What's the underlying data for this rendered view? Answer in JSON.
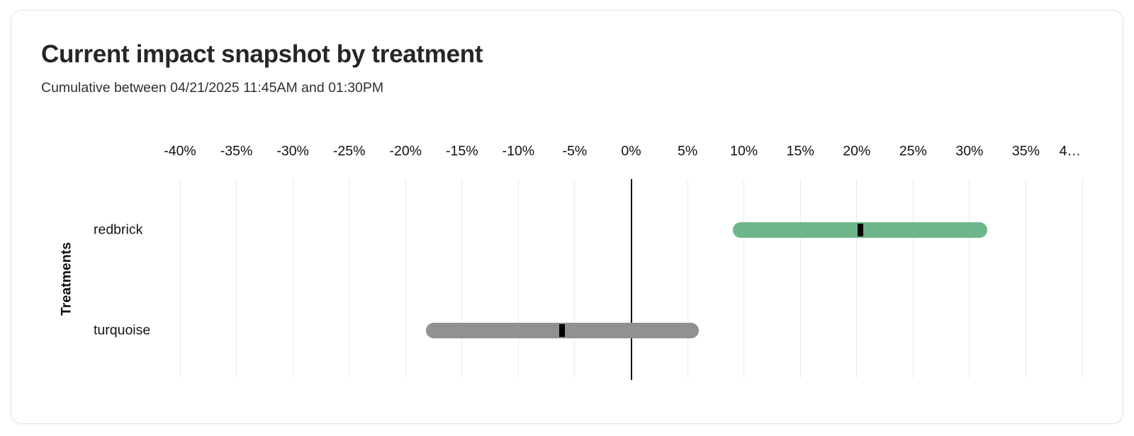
{
  "card": {
    "title": "Current impact snapshot by treatment",
    "subtitle": "Cumulative between 04/21/2025 11:45AM and 01:30PM"
  },
  "chart_data": {
    "type": "bar",
    "orientation": "horizontal",
    "title": "Current impact snapshot by treatment",
    "subtitle": "Cumulative between 04/21/2025 11:45AM and 01:30PM",
    "xlabel": "",
    "ylabel": "Treatments",
    "xlim": [
      -40,
      40
    ],
    "x_tick_step": 5,
    "x_tick_labels": [
      "-40%",
      "-35%",
      "-30%",
      "-25%",
      "-20%",
      "-15%",
      "-10%",
      "-5%",
      "0%",
      "5%",
      "10%",
      "15%",
      "20%",
      "25%",
      "30%",
      "35%",
      "4…"
    ],
    "x_tick_unit": "%",
    "grid": true,
    "zero_line": true,
    "legend": "none",
    "series": [
      {
        "name": "redbrick",
        "ci_low": 9.0,
        "ci_high": 31.6,
        "value": 20.3,
        "color": "#6db58b"
      },
      {
        "name": "turquoise",
        "ci_low": -18.2,
        "ci_high": 6.0,
        "value": -6.1,
        "color": "#919191"
      }
    ],
    "colors": {
      "grid": "#e9e9e9",
      "zero_line": "#0a0a0a",
      "point_marker": "#000000",
      "redbrick_bar": "#6db58b",
      "turquoise_bar": "#919191"
    }
  }
}
